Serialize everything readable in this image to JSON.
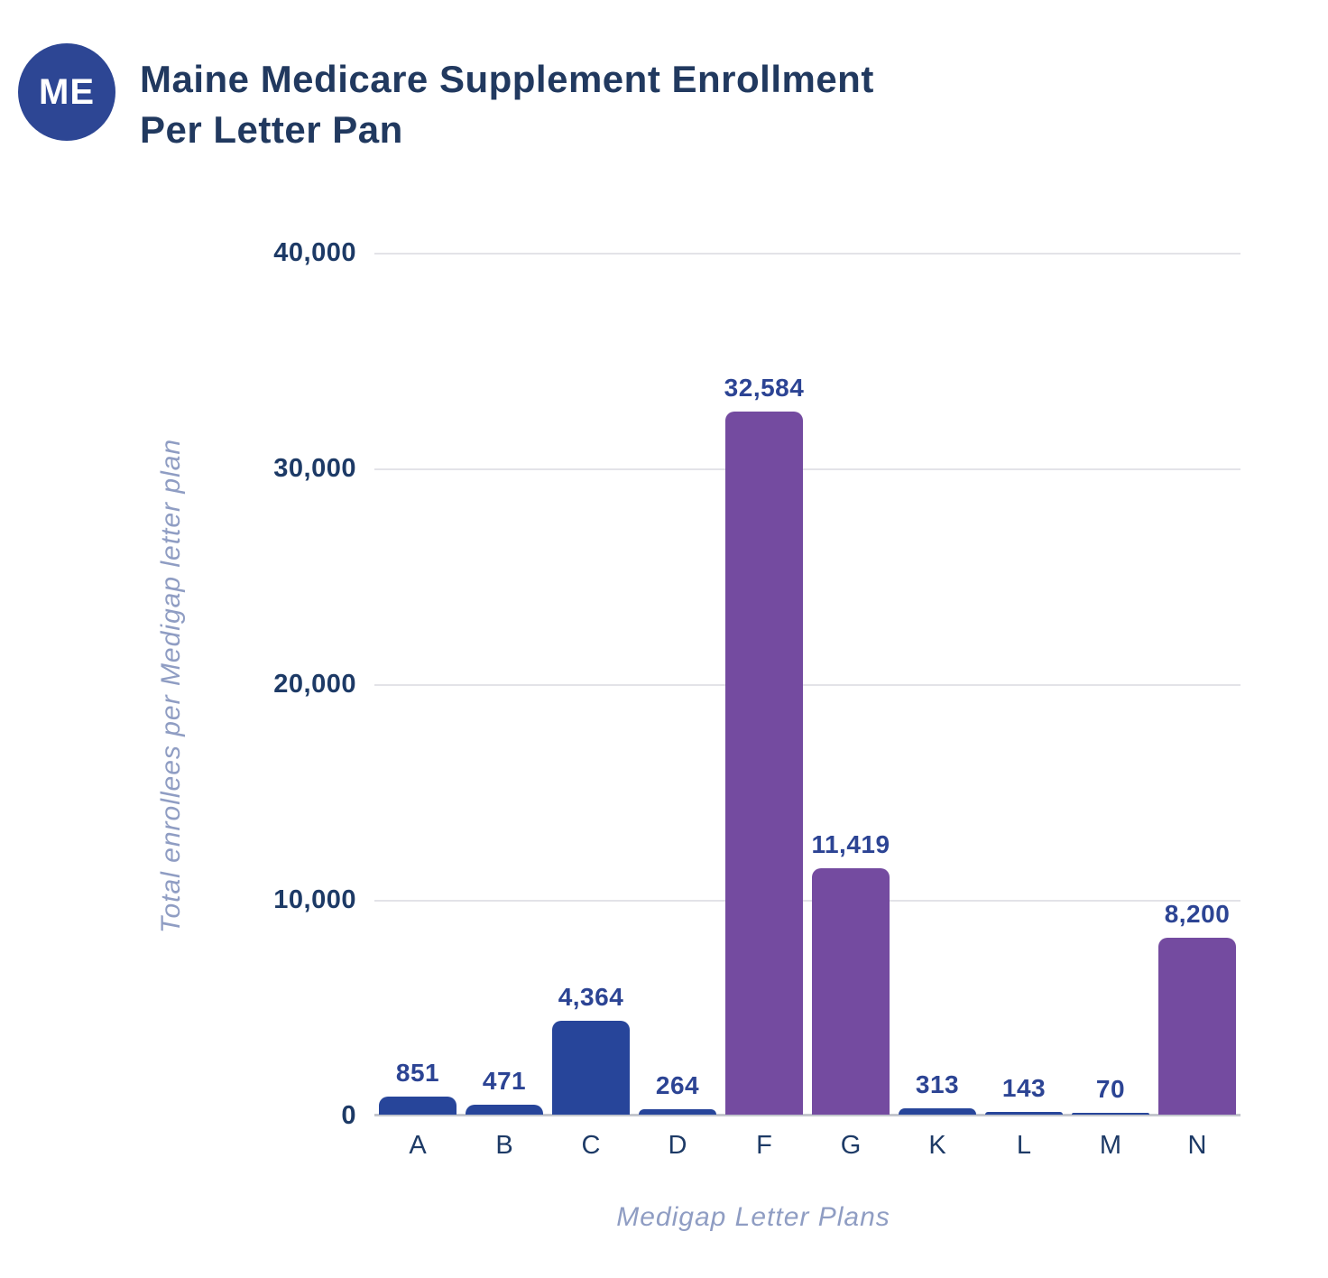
{
  "header": {
    "badge": "ME",
    "title_line1": "Maine Medicare Supplement Enrollment",
    "title_line2": "Per Letter Pan"
  },
  "chart_data": {
    "type": "bar",
    "title": "Maine Medicare Supplement Enrollment Per Letter Pan",
    "categories": [
      "A",
      "B",
      "C",
      "D",
      "F",
      "G",
      "K",
      "L",
      "M",
      "N"
    ],
    "values": [
      851,
      471,
      4364,
      264,
      32584,
      11419,
      313,
      143,
      70,
      8200
    ],
    "data_labels": [
      "851",
      "471",
      "4,364",
      "264",
      "32,584",
      "11,419",
      "313",
      "143",
      "70",
      "8,200"
    ],
    "bar_colors": [
      "#27459a",
      "#27459a",
      "#27459a",
      "#27459a",
      "#744ba0",
      "#744ba0",
      "#27459a",
      "#27459a",
      "#27459a",
      "#744ba0"
    ],
    "xlabel": "Medigap Letter Plans",
    "ylabel": "Total enrollees per Medigap letter plan",
    "ylim": [
      0,
      40000
    ],
    "y_ticks": [
      0,
      10000,
      20000,
      30000,
      40000
    ],
    "y_tick_labels": [
      "0",
      "10,000",
      "20,000",
      "30,000",
      "40,000"
    ],
    "grid": "horizontal",
    "legend": "none"
  },
  "colors": {
    "badge_background": "#2d4694",
    "badge_text": "#ffffff",
    "title_text": "#21395f",
    "bar_blue": "#27459a",
    "bar_purple": "#744ba0",
    "data_label_text": "#2c4494",
    "tick_text": "#1d3a66",
    "axis_title_text": "#8f9dc3",
    "gridline": "#e3e3e8",
    "baseline": "#c3c6cd",
    "background": "#ffffff"
  }
}
